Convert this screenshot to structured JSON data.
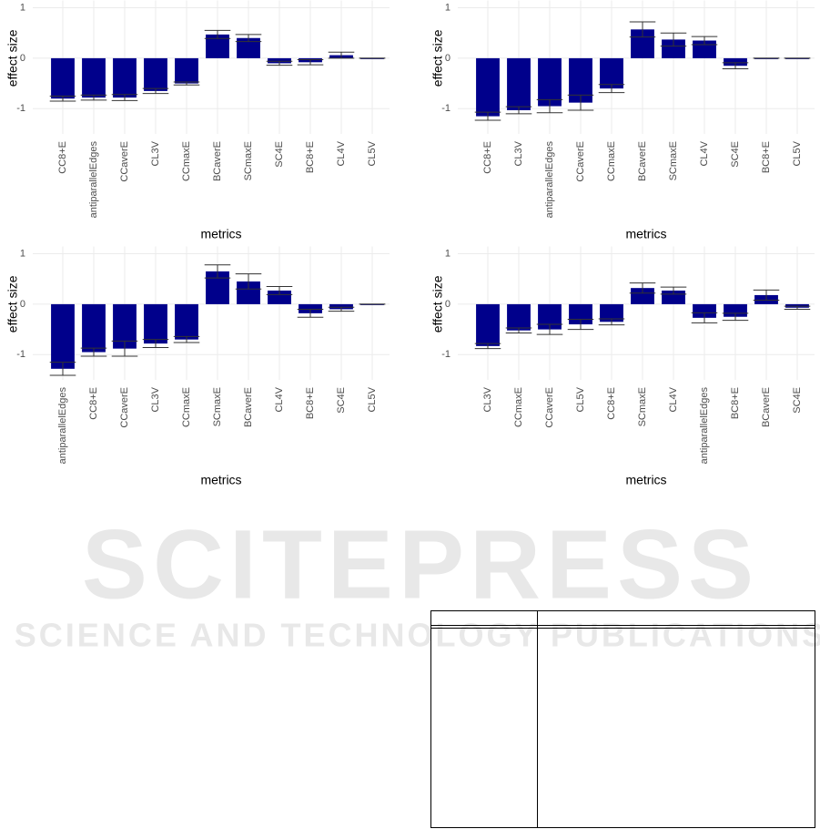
{
  "chart_data": [
    {
      "type": "bar",
      "ylabel": "effect size",
      "xlabel": "metrics",
      "categories": [
        "CC8+E",
        "antiparallelEdges",
        "CCaverE",
        "CL3V",
        "CCmaxE",
        "BCaverE",
        "SCmaxE",
        "SC4E",
        "BC8+E",
        "CL4V",
        "CL5V"
      ],
      "values": [
        -0.8,
        -0.78,
        -0.78,
        -0.65,
        -0.5,
        0.47,
        0.4,
        -0.1,
        -0.08,
        0.06,
        0
      ],
      "errors": [
        0.05,
        0.05,
        0.06,
        0.05,
        0.03,
        0.08,
        0.07,
        0.04,
        0.05,
        0.06,
        0
      ],
      "color": "#00008b",
      "ylim": [
        -1.5,
        1
      ],
      "yticks": [
        -1,
        0,
        1
      ],
      "grid": true
    },
    {
      "type": "bar",
      "ylabel": "effect size",
      "xlabel": "metrics",
      "categories": [
        "CC8+E",
        "CL3V",
        "antiparallelEdges",
        "CCaverE",
        "CCmaxE",
        "BCaverE",
        "SCmaxE",
        "CL4V",
        "SC4E",
        "BC8+E",
        "CL5V"
      ],
      "values": [
        -1.15,
        -1.03,
        -0.95,
        -0.88,
        -0.6,
        0.57,
        0.37,
        0.35,
        -0.15,
        0,
        0
      ],
      "errors": [
        0.08,
        0.07,
        0.13,
        0.15,
        0.08,
        0.15,
        0.13,
        0.08,
        0.06,
        0,
        0
      ],
      "color": "#00008b",
      "ylim": [
        -1.5,
        1
      ],
      "yticks": [
        -1,
        0,
        1
      ],
      "grid": true
    },
    {
      "type": "bar",
      "ylabel": "effect size",
      "xlabel": "metrics",
      "categories": [
        "antiparallelEdges",
        "CC8+E",
        "CCaverE",
        "CL3V",
        "CCmaxE",
        "SCmaxE",
        "BCaverE",
        "CL4V",
        "BC8+E",
        "SC4E",
        "CL5V"
      ],
      "values": [
        -1.28,
        -0.95,
        -0.88,
        -0.78,
        -0.7,
        0.65,
        0.45,
        0.27,
        -0.18,
        -0.1,
        0
      ],
      "errors": [
        0.13,
        0.08,
        0.15,
        0.08,
        0.06,
        0.13,
        0.15,
        0.08,
        0.08,
        0.04,
        0
      ],
      "color": "#00008b",
      "ylim": [
        -1.5,
        1
      ],
      "yticks": [
        -1,
        0,
        1
      ],
      "grid": true
    },
    {
      "type": "bar",
      "ylabel": "effect size",
      "xlabel": "metrics",
      "categories": [
        "CL3V",
        "CCmaxE",
        "CCaverE",
        "CL5V",
        "CC8+E",
        "SCmaxE",
        "CL4V",
        "antiparallelEdges",
        "BC8+E",
        "BCaverE",
        "SC4E"
      ],
      "values": [
        -0.83,
        -0.52,
        -0.5,
        -0.4,
        -0.35,
        0.32,
        0.27,
        -0.27,
        -0.25,
        0.18,
        -0.07
      ],
      "errors": [
        0.05,
        0.05,
        0.1,
        0.1,
        0.06,
        0.1,
        0.07,
        0.1,
        0.07,
        0.1,
        0.03
      ],
      "color": "#00008b",
      "ylim": [
        -1.5,
        1
      ],
      "yticks": [
        -1,
        0,
        1
      ],
      "grid": true
    }
  ],
  "watermark": {
    "title": "SCITEPRESS",
    "subtitle": "SCIENCE AND TECHNOLOGY PUBLICATIONS"
  }
}
